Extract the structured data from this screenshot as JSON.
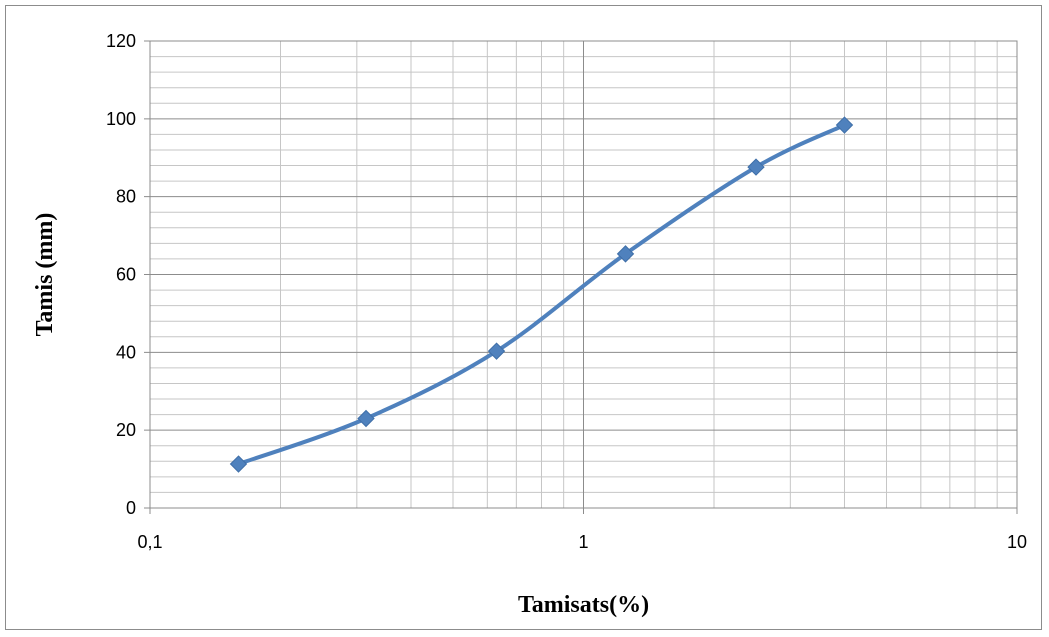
{
  "chart_data": {
    "type": "line",
    "title": "",
    "xlabel": "Tamisats(%)",
    "ylabel": "Tamis (mm)",
    "x_scale": "log",
    "xlim": [
      0.1,
      10
    ],
    "ylim": [
      0,
      120
    ],
    "x_ticks": [
      {
        "value": 0.1,
        "label": "0,1"
      },
      {
        "value": 1,
        "label": "1"
      },
      {
        "value": 10,
        "label": "10"
      }
    ],
    "y_ticks": [
      {
        "value": 0,
        "label": "0"
      },
      {
        "value": 20,
        "label": "20"
      },
      {
        "value": 40,
        "label": "40"
      },
      {
        "value": 60,
        "label": "60"
      },
      {
        "value": 80,
        "label": "80"
      },
      {
        "value": 100,
        "label": "100"
      },
      {
        "value": 120,
        "label": "120"
      }
    ],
    "y_minor_step": 4,
    "grid": true,
    "legend": "none",
    "series": [
      {
        "color": "#4f81bd",
        "marker": "diamond",
        "smooth": true,
        "points": [
          {
            "x": 0.16,
            "y": 11.3
          },
          {
            "x": 0.315,
            "y": 23
          },
          {
            "x": 0.63,
            "y": 40.3
          },
          {
            "x": 1.25,
            "y": 65.3
          },
          {
            "x": 2.5,
            "y": 87.6
          },
          {
            "x": 4,
            "y": 98.4
          }
        ]
      }
    ]
  }
}
